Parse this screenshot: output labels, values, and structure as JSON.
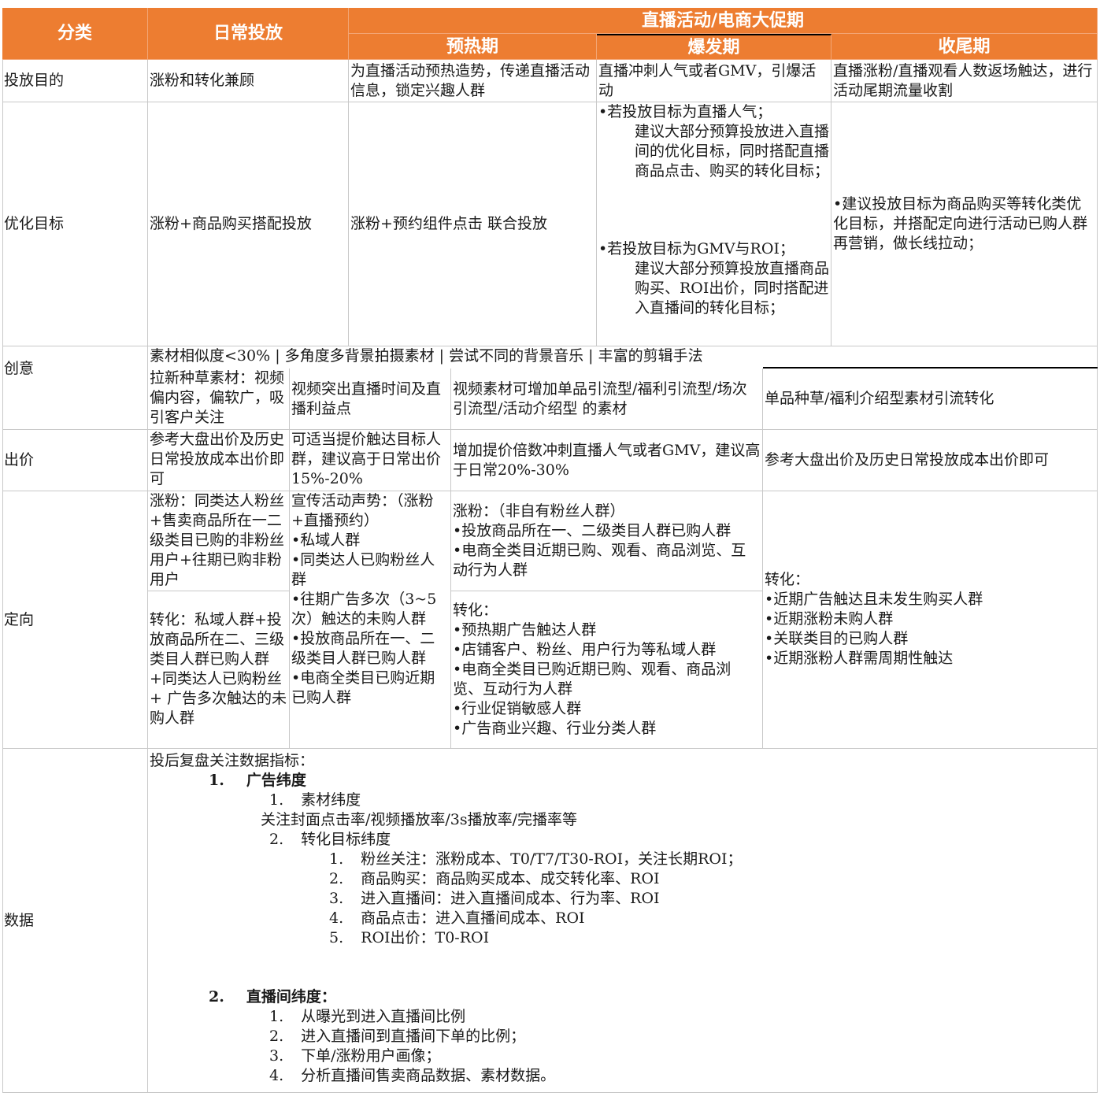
{
  "header": {
    "category": "分类",
    "daily": "日常投放",
    "live_group": "直播活动/电商大促期",
    "warmup": "预热期",
    "burst": "爆发期",
    "closing": "收尾期"
  },
  "rows": {
    "goal": {
      "label": "投放目的",
      "daily": "涨粉和转化兼顾",
      "warmup": "为直播活动预热造势，传递直播活动信息，锁定兴趣人群",
      "burst": "直播冲刺人气或者GMV，引爆活动",
      "closing": "直播涨粉/直播观看人数返场触达，进行活动尾期流量收割"
    },
    "optimize": {
      "label": "优化目标",
      "daily": "涨粉+商品购买搭配投放",
      "warmup": "涨粉+预约组件点击 联合投放",
      "burst_a_title": "•若投放目标为直播人气；",
      "burst_a_body": "建议大部分预算投放进入直播间的优化目标，同时搭配直播商品点击、购买的转化目标；",
      "burst_b_title": "•若投放目标为GMV与ROI；",
      "burst_b_body": "建议大部分预算投放直播商品购买、ROI出价，同时搭配进入直播间的转化目标；",
      "closing": "•建议投放目标为商品购买等转化类优化目标，并搭配定向进行活动已购人群再营销，做长线拉动；"
    },
    "creative": {
      "label": "创意",
      "general": "素材相似度<30% | 多角度多背景拍摄素材 | 尝试不同的背景音乐 | 丰富的剪辑手法",
      "daily": "拉新种草素材：视频偏内容，偏软广，吸引客户关注",
      "warmup": "视频突出直播时间及直播利益点",
      "burst": "视频素材可增加单品引流型/福利引流型/场次引流型/活动介绍型 的素材",
      "closing": "单品种草/福利介绍型素材引流转化"
    },
    "bid": {
      "label": "出价",
      "daily": "参考大盘出价及历史日常投放成本出价即可",
      "warmup": "可适当提价触达目标人群，建议高于日常出价15%-20%",
      "burst": "增加提价倍数冲刺直播人气或者GMV，建议高于日常20%-30%",
      "closing": "参考大盘出价及历史日常投放成本出价即可"
    },
    "targeting": {
      "label": "定向",
      "daily_fans": "涨粉：同类达人粉丝+售卖商品所在一二级类目已购的非粉丝用户+往期已购非粉用户",
      "daily_conv": "转化：私域人群+投放商品所在二、三级类目人群已购人群+同类达人已购粉丝+ 广告多次触达的未购人群",
      "warmup_lines": [
        "宣传活动声势：（涨粉+直播预约）",
        "•私域人群",
        "•同类达人已购粉丝人群",
        "•往期广告多次（3~5次）触达的未购人群",
        "•投放商品所在一、二级类目人群已购人群",
        "•电商全类目已购近期已购人群"
      ],
      "burst_fans_lines": [
        "涨粉：（非自有粉丝人群）",
        "•投放商品所在一、二级类目人群已购人群",
        "•电商全类目近期已购、观看、商品浏览、互动行为人群"
      ],
      "burst_conv_lines": [
        "转化：",
        "•预热期广告触达人群",
        "•店铺客户、粉丝、用户行为等私域人群",
        "•电商全类目已购近期已购、观看、商品浏览、互动行为人群",
        "•行业促销敏感人群",
        "•广告商业兴趣、行业分类人群"
      ],
      "closing_lines": [
        "转化：",
        "•近期广告触达且未发生购买人群",
        "•近期涨粉未购人群",
        "•关联类目的已购人群",
        "•近期涨粉人群需周期性触达"
      ]
    },
    "data": {
      "label": "数据",
      "intro": "投后复盘关注数据指标：",
      "sec1_num": "1.",
      "sec1_title": "广告纬度",
      "s1_i1_num": "1.",
      "s1_i1": "素材纬度",
      "s1_i1_desc": "关注封面点击率/视频播放率/3s播放率/完播率等",
      "s1_i2_num": "2.",
      "s1_i2": "转化目标纬度",
      "s1_sub": [
        {
          "n": "1.",
          "t": "粉丝关注：涨粉成本、T0/T7/T30-ROI，关注长期ROI；"
        },
        {
          "n": "2.",
          "t": "商品购买：商品购买成本、成交转化率、ROI"
        },
        {
          "n": "3.",
          "t": "进入直播间：进入直播间成本、行为率、ROI"
        },
        {
          "n": "4.",
          "t": "商品点击：进入直播间成本、ROI"
        },
        {
          "n": "5.",
          "t": "ROI出价：T0-ROI"
        }
      ],
      "sec2_num": "2.",
      "sec2_title": "直播间纬度：",
      "s2_items": [
        {
          "n": "1.",
          "t": "从曝光到进入直播间比例"
        },
        {
          "n": "2.",
          "t": "进入直播间到直播间下单的比例；"
        },
        {
          "n": "3.",
          "t": "下单/涨粉用户画像；"
        },
        {
          "n": "4.",
          "t": "分析直播间售卖商品数据、素材数据。"
        }
      ]
    }
  },
  "colors": {
    "header_bg": "#ed7d31",
    "header_text": "#ffffff",
    "grid": "#c8c8c8"
  }
}
